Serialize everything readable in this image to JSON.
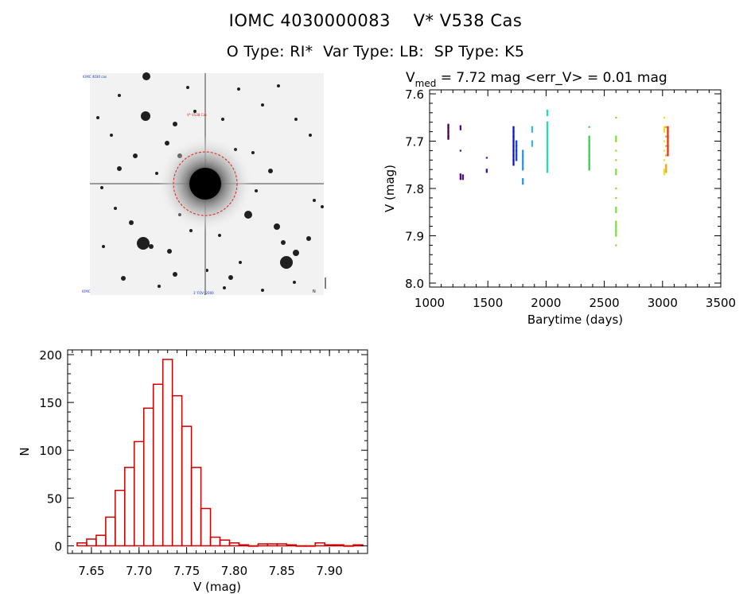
{
  "header": {
    "title": "IOMC 4030000083    V* V538 Cas",
    "subtitle": "O Type: RI*  Var Type: LB:  SP Type: K5"
  },
  "finder": {
    "label_tl": "IOMC 4030 cas",
    "label_target": "V* V538 Cas",
    "label_bl": "IOMC",
    "label_bc": "1' FOV J2000",
    "label_br": "N"
  },
  "chart_data": [
    {
      "type": "scatter",
      "title_prefix": "V",
      "title_sub": "med",
      "title_rest": " = 7.72 mag <err_V> = 0.01 mag",
      "xlabel": "Barytime (days)",
      "ylabel": "V (mag)",
      "xlim": [
        1000,
        3500
      ],
      "ylim": [
        8.0,
        7.6
      ],
      "xticks": [
        1000,
        1500,
        2000,
        2500,
        3000,
        3500
      ],
      "yticks": [
        7.6,
        7.7,
        7.8,
        7.9,
        8.0
      ],
      "xtick_labels": [
        "1000",
        "1500",
        "2000",
        "2500",
        "3000",
        "3500"
      ],
      "ytick_labels": [
        "7.6",
        "7.7",
        "7.8",
        "7.9",
        "8.0"
      ],
      "groups": [
        {
          "x": 1160,
          "color": "#3a0050",
          "points": [
            7.665,
            7.672,
            7.68,
            7.69,
            7.695
          ]
        },
        {
          "x": 1265,
          "color": "#5a0090",
          "points": [
            7.668,
            7.675,
            7.72,
            7.77,
            7.78
          ]
        },
        {
          "x": 1285,
          "color": "#5a0090",
          "points": [
            7.772,
            7.78
          ]
        },
        {
          "x": 1490,
          "color": "#3a10b0",
          "points": [
            7.735,
            7.76,
            7.765
          ]
        },
        {
          "x": 1720,
          "color": "#0a10d0",
          "points": [
            7.67,
            7.68,
            7.69,
            7.7,
            7.71,
            7.72,
            7.73,
            7.74,
            7.75
          ]
        },
        {
          "x": 1745,
          "color": "#1040e0",
          "points": [
            7.7,
            7.71,
            7.72,
            7.73,
            7.74
          ]
        },
        {
          "x": 1800,
          "color": "#2a90e0",
          "points": [
            7.72,
            7.73,
            7.745,
            7.76,
            7.78,
            7.79
          ]
        },
        {
          "x": 1880,
          "color": "#30b8e0",
          "points": [
            7.67,
            7.68,
            7.7,
            7.71
          ]
        },
        {
          "x": 2010,
          "color": "#20e0b0",
          "points": [
            7.635,
            7.645,
            7.66,
            7.67,
            7.68,
            7.69,
            7.7,
            7.71,
            7.72,
            7.73,
            7.74,
            7.75,
            7.76,
            7.765
          ]
        },
        {
          "x": 2370,
          "color": "#30d050",
          "points": [
            7.67,
            7.69,
            7.7,
            7.71,
            7.72,
            7.73,
            7.74,
            7.75,
            7.76
          ]
        },
        {
          "x": 2600,
          "color": "#80e030",
          "points": [
            7.65,
            7.69,
            7.7,
            7.72,
            7.74,
            7.76,
            7.77,
            7.8,
            7.82,
            7.84,
            7.85,
            7.87,
            7.88,
            7.89,
            7.9,
            7.92
          ]
        },
        {
          "x": 3015,
          "color": "#e8e020",
          "points": [
            7.65,
            7.67,
            7.68,
            7.7,
            7.72,
            7.74,
            7.76,
            7.77
          ]
        },
        {
          "x": 3030,
          "color": "#f0a020",
          "points": [
            7.67,
            7.69,
            7.71,
            7.73,
            7.75,
            7.765
          ]
        },
        {
          "x": 3045,
          "color": "#e83010",
          "points": [
            7.67,
            7.68,
            7.69,
            7.7,
            7.71,
            7.72,
            7.73
          ]
        }
      ]
    },
    {
      "type": "bar",
      "xlabel": "V (mag)",
      "ylabel": "N",
      "xlim": [
        7.625,
        7.94
      ],
      "ylim": [
        -8,
        205
      ],
      "xticks": [
        7.65,
        7.7,
        7.75,
        7.8,
        7.85,
        7.9
      ],
      "yticks": [
        0,
        50,
        100,
        150,
        200
      ],
      "xtick_labels": [
        "7.65",
        "7.70",
        "7.75",
        "7.80",
        "7.85",
        "7.90"
      ],
      "ytick_labels": [
        "0",
        "50",
        "100",
        "150",
        "200"
      ],
      "bin_start": 7.635,
      "bin_width": 0.01,
      "values": [
        3,
        7,
        11,
        30,
        58,
        82,
        109,
        144,
        169,
        195,
        157,
        125,
        82,
        39,
        9,
        6,
        3,
        1,
        0,
        2,
        2,
        2,
        1,
        0,
        0,
        3,
        1,
        1,
        0,
        1
      ]
    }
  ],
  "colors": {
    "hist_bar": "#cc0000",
    "finder_circle": "#e02020"
  }
}
